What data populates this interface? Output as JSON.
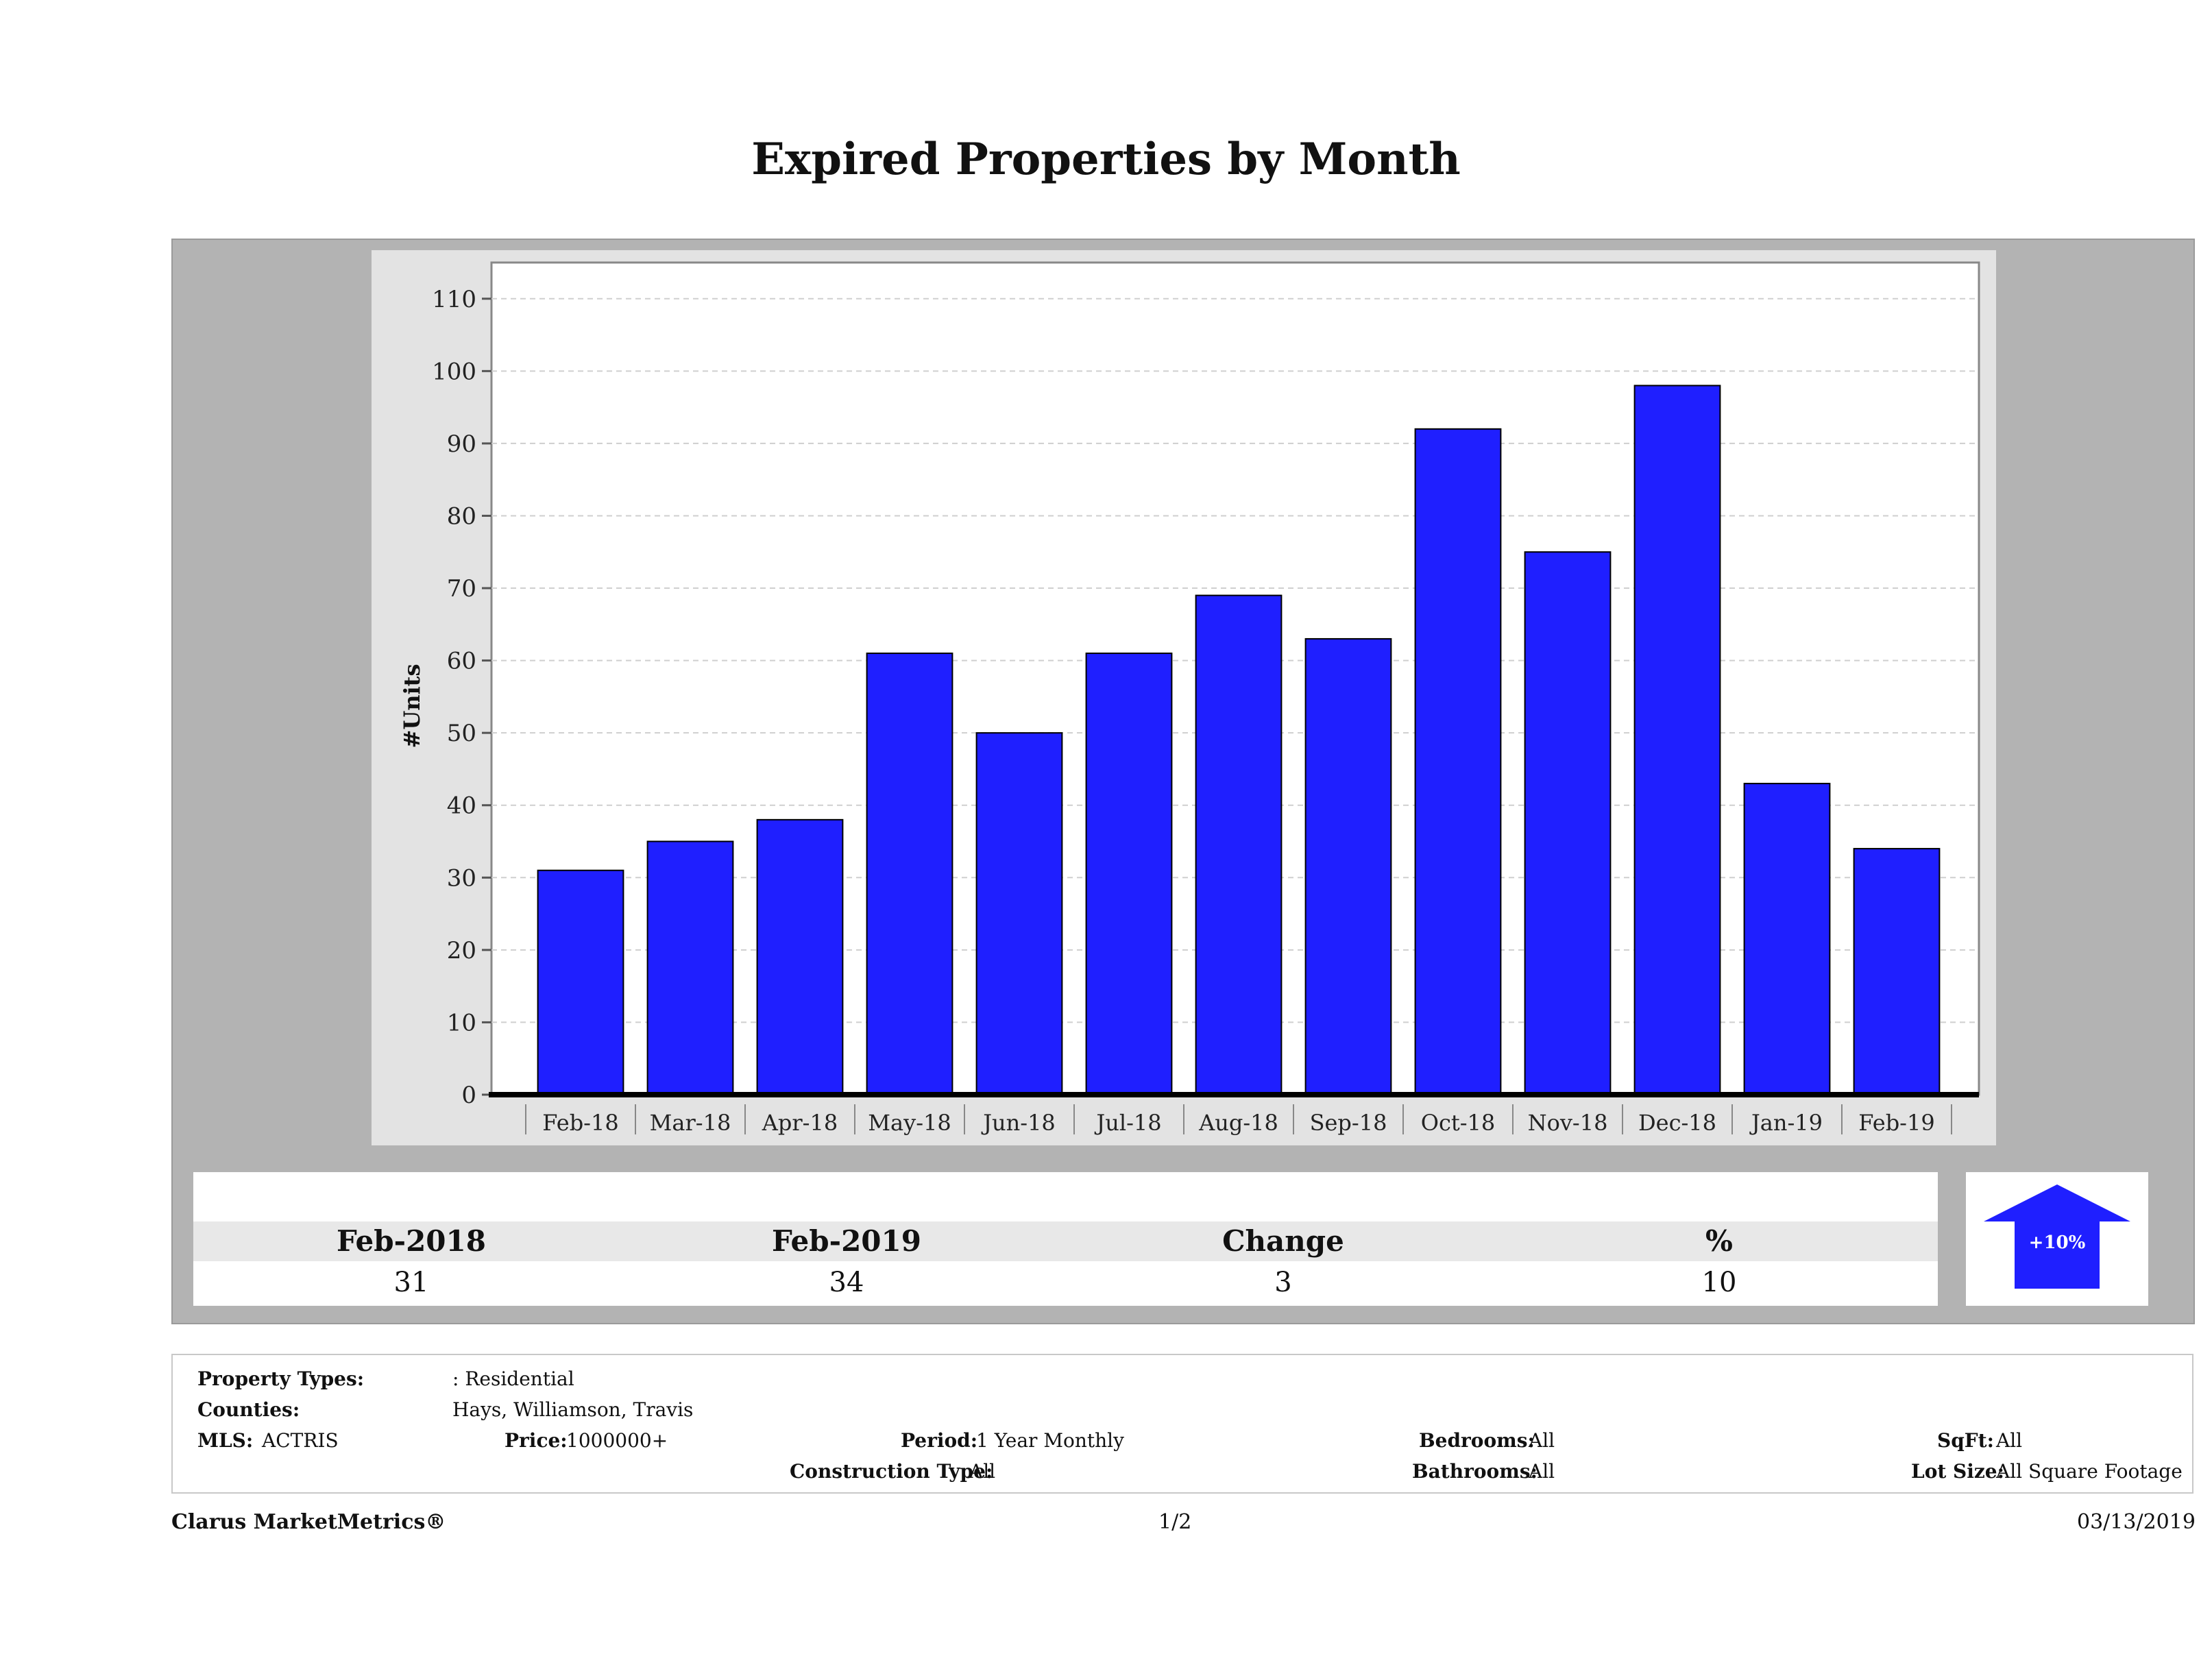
{
  "page_title": "Expired Properties by Month",
  "chart_data": {
    "type": "bar",
    "categories": [
      "Feb-18",
      "Mar-18",
      "Apr-18",
      "May-18",
      "Jun-18",
      "Jul-18",
      "Aug-18",
      "Sep-18",
      "Oct-18",
      "Nov-18",
      "Dec-18",
      "Jan-19",
      "Feb-19"
    ],
    "values": [
      31,
      35,
      38,
      61,
      50,
      61,
      69,
      63,
      92,
      75,
      98,
      43,
      34
    ],
    "title": "",
    "xlabel": "",
    "ylabel": "#Units",
    "ylim": [
      0,
      115
    ],
    "yticks": [
      0,
      10,
      20,
      30,
      40,
      50,
      60,
      70,
      80,
      90,
      100,
      110
    ],
    "bar_color": "#1f1fff",
    "grid": true,
    "legend": "none"
  },
  "stats": {
    "headers": [
      "Feb-2018",
      "Feb-2019",
      "Change",
      "%"
    ],
    "values": [
      "31",
      "34",
      "3",
      "10"
    ]
  },
  "change_badge": {
    "label": "+10%",
    "direction": "up-arrow-icon",
    "color": "#1f1fff"
  },
  "info": {
    "property_types_label": "Property Types:",
    "property_types_value": ": Residential",
    "counties_label": "Counties:",
    "counties_value": "Hays, Williamson, Travis",
    "mls_label": "MLS:",
    "mls_value": "ACTRIS",
    "price_label": "Price:",
    "price_value": "1000000+",
    "period_label": "Period:",
    "period_value": "1 Year Monthly",
    "construction_label": "Construction Type:",
    "construction_value": "All",
    "bedrooms_label": "Bedrooms:",
    "bedrooms_value": "All",
    "bathrooms_label": "Bathrooms:",
    "bathrooms_value": "All",
    "sqft_label": "SqFt:",
    "sqft_value": "All",
    "lotsize_label": "Lot Size:",
    "lotsize_value": "All Square Footage"
  },
  "footer": {
    "brand": "Clarus MarketMetrics®",
    "page": "1/2",
    "date": "03/13/2019"
  }
}
